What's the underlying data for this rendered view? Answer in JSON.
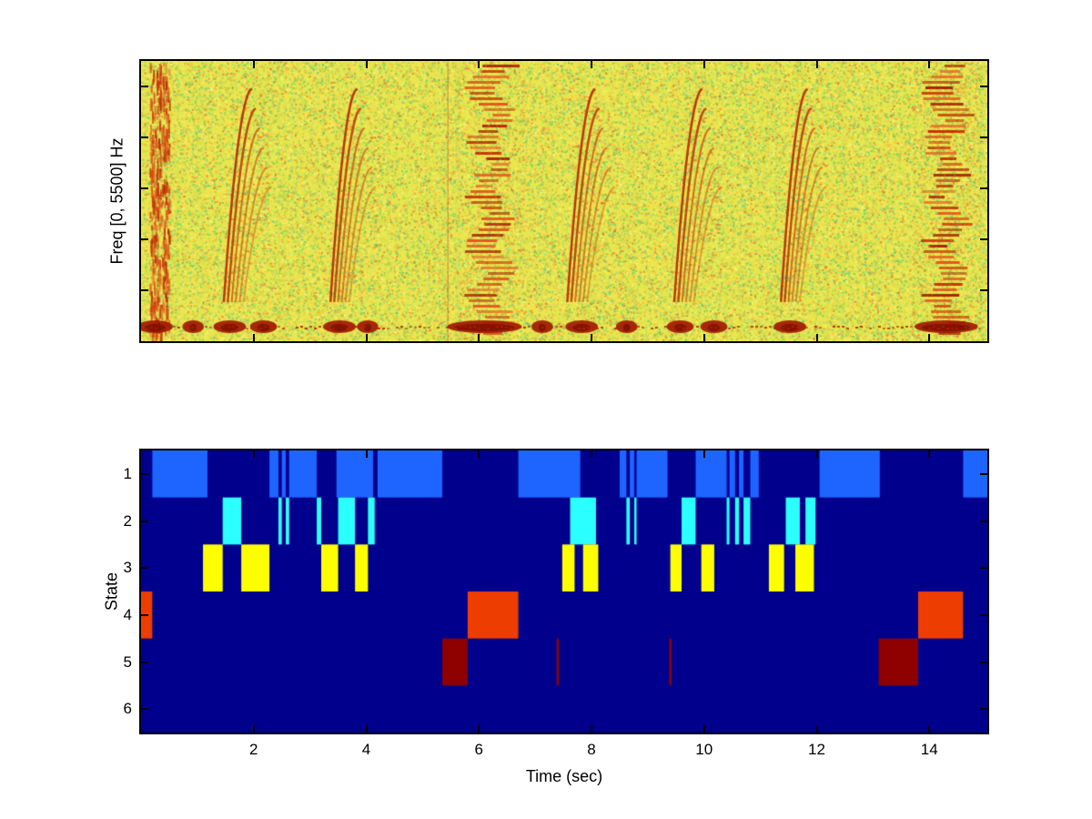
{
  "chart_data": [
    {
      "type": "heatmap",
      "subtype": "spectrogram",
      "title": "",
      "ylabel": "Freq [0, 5500] Hz",
      "x_range": [
        0,
        15.03
      ],
      "freq_range_hz": [
        0,
        5500
      ],
      "x_ticks": [
        2,
        4,
        6,
        8,
        10,
        12,
        14
      ],
      "colormap": "jet",
      "events": [
        {
          "kind": "broadband",
          "t0": 0.15,
          "t1": 0.5
        },
        {
          "kind": "chirps",
          "t0": 1.35,
          "t1": 2.35,
          "n": 6
        },
        {
          "kind": "chirps",
          "t0": 3.25,
          "t1": 4.2,
          "n": 6
        },
        {
          "kind": "harmonics",
          "t0": 5.75,
          "t1": 6.65
        },
        {
          "kind": "chirps",
          "t0": 7.45,
          "t1": 8.45,
          "n": 6
        },
        {
          "kind": "chirps",
          "t0": 9.35,
          "t1": 10.35,
          "n": 6
        },
        {
          "kind": "chirps",
          "t0": 11.25,
          "t1": 12.2,
          "n": 6
        },
        {
          "kind": "harmonics",
          "t0": 13.85,
          "t1": 14.75
        }
      ],
      "faint_vlines": [
        5.45
      ],
      "low_band_pulses": [
        [
          0.0,
          0.5
        ],
        [
          0.8,
          1.05
        ],
        [
          1.35,
          1.8
        ],
        [
          2.0,
          2.35
        ],
        [
          3.3,
          3.75
        ],
        [
          3.9,
          4.15
        ],
        [
          5.5,
          6.7
        ],
        [
          7.0,
          7.25
        ],
        [
          7.6,
          8.05
        ],
        [
          8.5,
          8.75
        ],
        [
          9.4,
          9.75
        ],
        [
          10.0,
          10.35
        ],
        [
          11.3,
          11.75
        ],
        [
          13.8,
          14.8
        ]
      ]
    },
    {
      "type": "heatmap",
      "subtype": "state-sequence",
      "title": "",
      "ylabel": "State",
      "xlabel": "Time (sec)",
      "x_range": [
        0,
        15.03
      ],
      "x_ticks": [
        2,
        4,
        6,
        8,
        10,
        12,
        14
      ],
      "y_ticks": [
        1,
        2,
        3,
        4,
        5,
        6
      ],
      "background": "#00008C",
      "states": [
        {
          "state": 1,
          "color": "#1E64FF",
          "segments": [
            [
              0.2,
              1.18
            ],
            [
              2.28,
              2.44
            ],
            [
              2.5,
              2.57
            ],
            [
              2.63,
              3.12
            ],
            [
              3.47,
              4.12
            ],
            [
              4.2,
              5.35
            ],
            [
              6.7,
              7.8
            ],
            [
              8.5,
              8.62
            ],
            [
              8.68,
              8.76
            ],
            [
              8.8,
              9.35
            ],
            [
              9.85,
              10.4
            ],
            [
              10.45,
              10.55
            ],
            [
              10.62,
              10.7
            ],
            [
              10.82,
              10.97
            ],
            [
              12.05,
              13.12
            ],
            [
              14.6,
              15.03
            ]
          ]
        },
        {
          "state": 2,
          "color": "#2BFFFF",
          "segments": [
            [
              1.45,
              1.78
            ],
            [
              2.44,
              2.5
            ],
            [
              2.57,
              2.63
            ],
            [
              3.12,
              3.2
            ],
            [
              3.5,
              3.8
            ],
            [
              4.03,
              4.15
            ],
            [
              7.62,
              8.08
            ],
            [
              8.62,
              8.68
            ],
            [
              8.76,
              8.8
            ],
            [
              9.6,
              9.85
            ],
            [
              10.4,
              10.45
            ],
            [
              10.55,
              10.62
            ],
            [
              10.7,
              10.82
            ],
            [
              11.45,
              11.7
            ],
            [
              11.8,
              11.98
            ]
          ]
        },
        {
          "state": 3,
          "color": "#FFFF00",
          "segments": [
            [
              1.1,
              1.45
            ],
            [
              1.78,
              2.28
            ],
            [
              3.2,
              3.5
            ],
            [
              3.8,
              4.03
            ],
            [
              7.48,
              7.7
            ],
            [
              7.85,
              8.12
            ],
            [
              9.4,
              9.6
            ],
            [
              9.95,
              10.18
            ],
            [
              11.15,
              11.42
            ],
            [
              11.62,
              11.95
            ]
          ]
        },
        {
          "state": 4,
          "color": "#EE3D00",
          "segments": [
            [
              0.0,
              0.2
            ],
            [
              5.8,
              6.7
            ],
            [
              13.8,
              14.6
            ]
          ]
        },
        {
          "state": 5,
          "color": "#8F0000",
          "segments": [
            [
              5.35,
              5.8
            ],
            [
              7.38,
              7.42
            ],
            [
              9.38,
              9.42
            ],
            [
              13.1,
              13.8
            ]
          ]
        },
        {
          "state": 6,
          "color": "#00008C",
          "segments": []
        }
      ]
    }
  ]
}
